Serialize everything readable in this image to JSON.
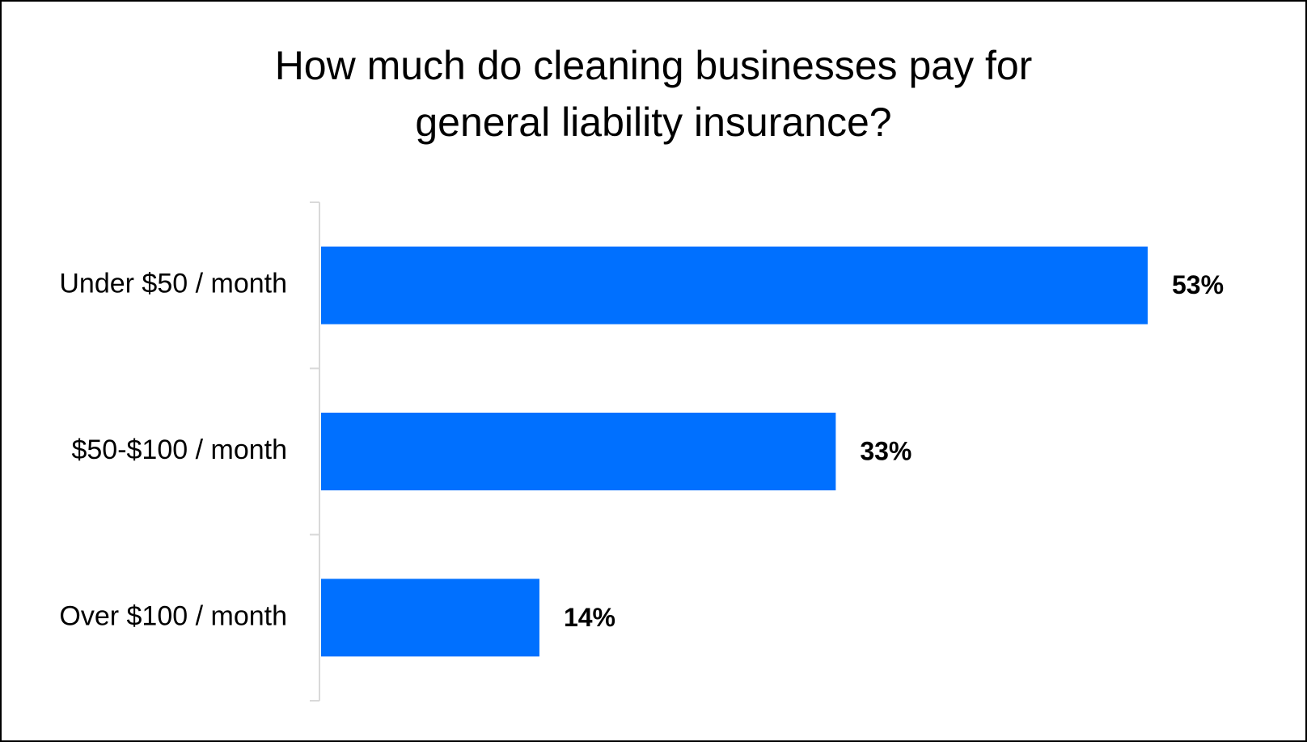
{
  "chart_data": {
    "type": "bar",
    "orientation": "horizontal",
    "title_lines": [
      "How much do cleaning businesses pay for",
      "general liability insurance?"
    ],
    "title": "How much do cleaning businesses pay for general liability insurance?",
    "categories": [
      "Under $50 / month",
      "$50-$100 / month",
      "Over $100 / month"
    ],
    "values": [
      53,
      33,
      14
    ],
    "value_labels": [
      "53%",
      "33%",
      "14%"
    ],
    "xlabel": "",
    "ylabel": "",
    "xlim": [
      0,
      53
    ],
    "grid": false,
    "legend": "none",
    "colors": {
      "bar": "#0070FF",
      "axis": "#D9D9D9",
      "text": "#000000",
      "border": "#000000"
    }
  }
}
